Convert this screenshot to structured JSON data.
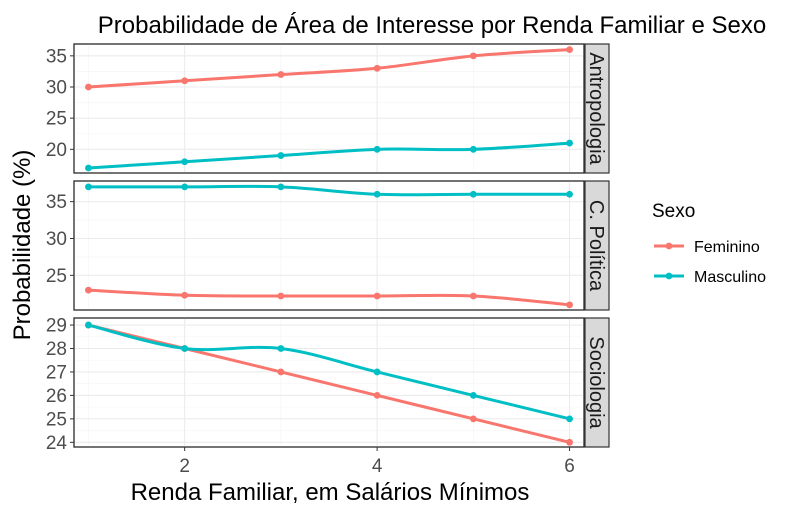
{
  "chart_data": {
    "type": "line",
    "title": "Probabilidade de Área de Interesse por Renda Familiar e Sexo",
    "xlabel": "Renda Familiar, em Salários Mínimos",
    "ylabel": "Probabilidade (%)",
    "x": [
      1,
      2,
      3,
      4,
      5,
      6
    ],
    "xlim": [
      0.85,
      6.15
    ],
    "x_ticks": [
      2,
      4,
      6
    ],
    "legend": {
      "title": "Sexo",
      "position": "right"
    },
    "grid": true,
    "colors": {
      "Feminino": "#F8766D",
      "Masculino": "#00BFC4"
    },
    "panels": [
      {
        "label": "Antropologia",
        "ylim": [
          16.2,
          36.9
        ],
        "y_ticks": [
          20,
          25,
          30,
          35
        ],
        "series": [
          {
            "name": "Feminino",
            "values": [
              30,
              31,
              32,
              33,
              35,
              36
            ]
          },
          {
            "name": "Masculino",
            "values": [
              17,
              18,
              19,
              20,
              20,
              21
            ]
          }
        ]
      },
      {
        "label": "C. Política",
        "ylim": [
          20.3,
          37.8
        ],
        "y_ticks": [
          25,
          30,
          35
        ],
        "series": [
          {
            "name": "Feminino",
            "values": [
              23,
              22.3,
              22.2,
              22.2,
              22.2,
              21
            ]
          },
          {
            "name": "Masculino",
            "values": [
              37,
              37,
              37,
              36,
              36,
              36
            ]
          }
        ]
      },
      {
        "label": "Sociologia",
        "ylim": [
          23.8,
          29.3
        ],
        "y_ticks": [
          24,
          25,
          26,
          27,
          28,
          29
        ],
        "series": [
          {
            "name": "Feminino",
            "values": [
              29,
              28,
              27,
              26,
              25,
              24
            ]
          },
          {
            "name": "Masculino",
            "values": [
              29,
              28,
              28,
              27,
              26,
              25
            ]
          }
        ]
      }
    ]
  }
}
